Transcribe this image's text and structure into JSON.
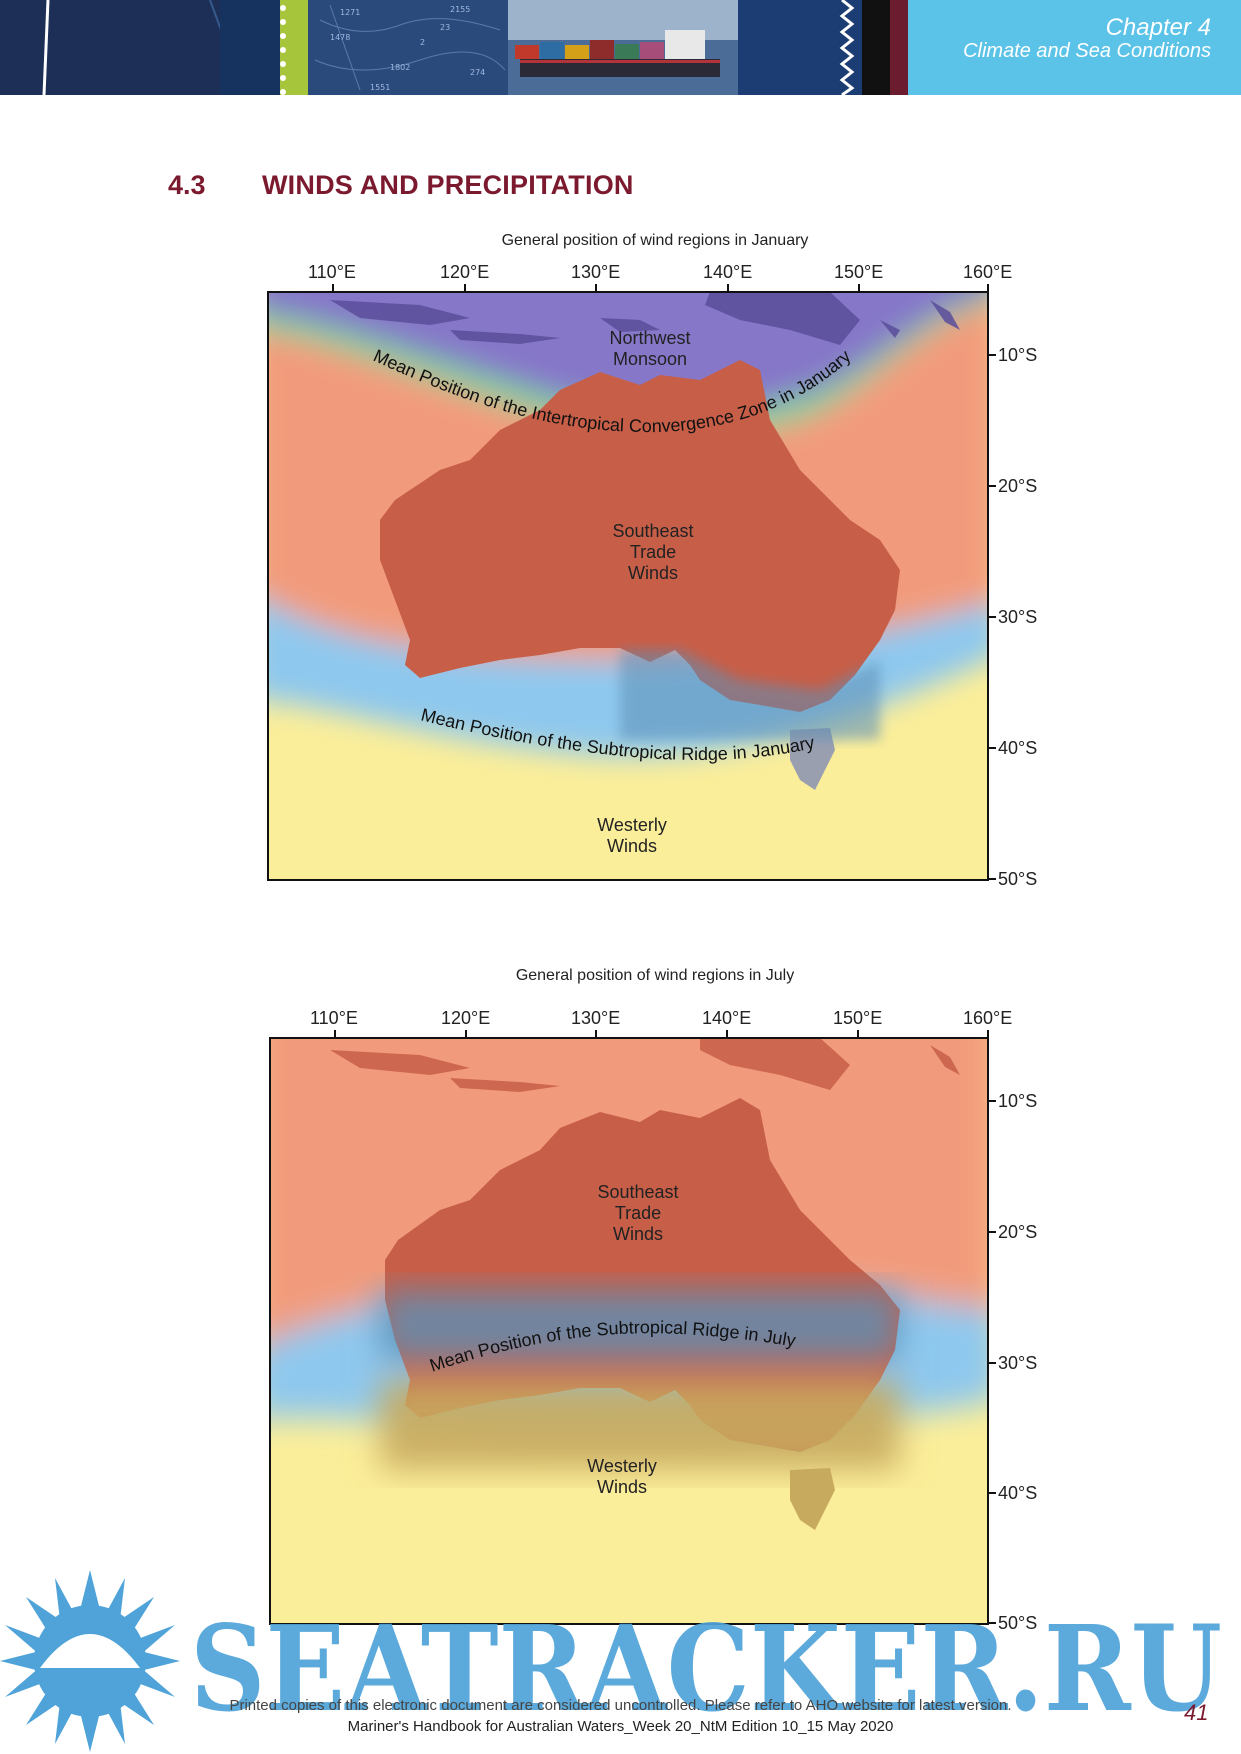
{
  "header": {
    "chapter": "Chapter 4",
    "chapter_title": "Climate and Sea Conditions"
  },
  "section": {
    "number": "4.3",
    "title": "WINDS AND PRECIPITATION"
  },
  "maps": [
    {
      "caption": "General position of wind regions in January",
      "lon_ticks": [
        "110°E",
        "120°E",
        "130°E",
        "140°E",
        "150°E",
        "160°E"
      ],
      "lat_ticks": [
        "10°S",
        "20°S",
        "30°S",
        "40°S",
        "50°S"
      ],
      "regions": {
        "monsoon": "Northwest\nMonsoon",
        "trade": "Southeast\nTrade\nWinds",
        "westerly": "Westerly\nWinds"
      },
      "itcz_label": "Mean Position of the Intertropical Convergence Zone in January",
      "ridge_label": "Mean Position of the Subtropical Ridge in January",
      "colors": {
        "monsoon": "#8677c9",
        "itcz": "#7fd39a",
        "trade": "#f29b7c",
        "ridge": "#8ec8ee",
        "westerly": "#fbee9a"
      }
    },
    {
      "caption": "General position of wind regions in July",
      "lon_ticks": [
        "110°E",
        "120°E",
        "130°E",
        "140°E",
        "150°E",
        "160°E"
      ],
      "lat_ticks": [
        "10°S",
        "20°S",
        "30°S",
        "40°S",
        "50°S"
      ],
      "regions": {
        "trade": "Southeast\nTrade\nWinds",
        "westerly": "Westerly\nWinds"
      },
      "ridge_label": "Mean Position of the Subtropical Ridge in July",
      "colors": {
        "trade": "#f29b7c",
        "ridge": "#8ec8ee",
        "westerly": "#fbee9a"
      }
    }
  ],
  "watermark": "SEATRACKER.RU",
  "footer": {
    "line1": "Printed copies of this electronic document are considered uncontrolled. Please refer to AHO website for latest version.",
    "line2": "Mariner's Handbook for Australian Waters_Week 20_NtM Edition 10_15 May 2020",
    "page": "41"
  }
}
